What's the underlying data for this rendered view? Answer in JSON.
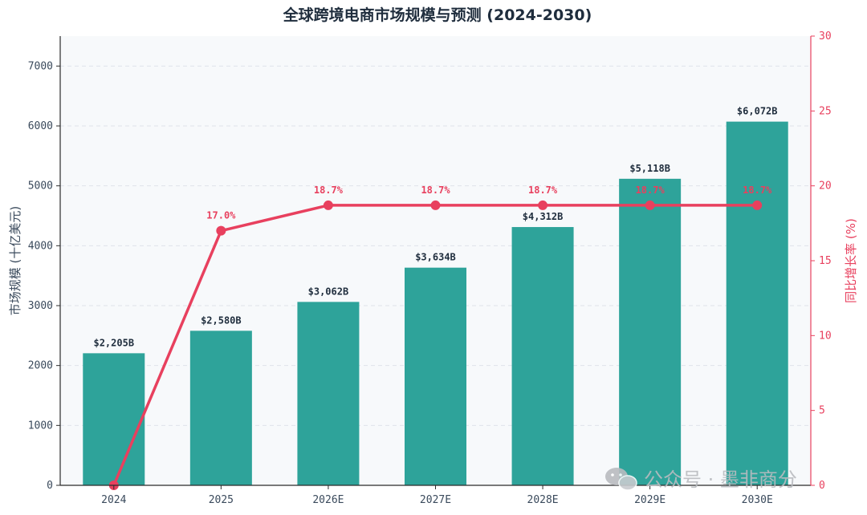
{
  "chart_data": {
    "type": "bar",
    "title": "全球跨境电商市场规模与预测 (2024-2030)",
    "categories": [
      "2024",
      "2025",
      "2026E",
      "2027E",
      "2028E",
      "2029E",
      "2030E"
    ],
    "series": [
      {
        "values": [
          2205,
          2580,
          3062,
          3634,
          4312,
          5118,
          6072
        ],
        "labels": [
          "$2,205B",
          "$2,580B",
          "$3,062B",
          "$3,634B",
          "$4,312B",
          "$5,118B",
          "$6,072B"
        ],
        "axis": "left",
        "color": "#2ea39a"
      },
      {
        "type": "line",
        "values": [
          0,
          17.0,
          18.7,
          18.7,
          18.7,
          18.7,
          18.7
        ],
        "labels": [
          "",
          "17.0%",
          "18.7%",
          "18.7%",
          "18.7%",
          "18.7%",
          "18.7%"
        ],
        "axis": "right",
        "color": "#e8405e"
      }
    ],
    "ylabel": "市场规模 (十亿美元)",
    "y2label": "同比增长率 (%)",
    "ylim": [
      0,
      7500
    ],
    "y2lim": [
      0,
      30
    ],
    "yticks": [
      "0",
      "1000",
      "2000",
      "3000",
      "4000",
      "5000",
      "6000",
      "7000"
    ],
    "y2ticks": [
      "0",
      "5",
      "10",
      "15",
      "20",
      "25",
      "30"
    ],
    "grid": true,
    "plot_background": "#f7f9fb"
  },
  "watermark": {
    "icon": "wechat-icon",
    "text": "公众号 · 墨非商分"
  }
}
